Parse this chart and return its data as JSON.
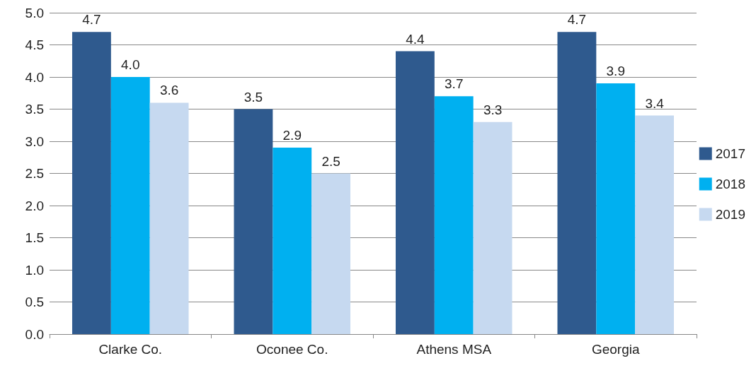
{
  "chart_data": {
    "type": "bar",
    "categories": [
      "Clarke Co.",
      "Oconee Co.",
      "Athens MSA",
      "Georgia"
    ],
    "series": [
      {
        "name": "2017",
        "color": "#2f5a8e",
        "values": [
          4.7,
          3.5,
          4.4,
          4.7
        ],
        "value_labels": [
          "4.7",
          "3.5",
          "4.4",
          "4.7"
        ]
      },
      {
        "name": "2018",
        "color": "#00b0f0",
        "values": [
          4.0,
          2.9,
          3.7,
          3.9
        ],
        "value_labels": [
          "4.0",
          "2.9",
          "3.7",
          "3.9"
        ]
      },
      {
        "name": "2019",
        "color": "#c6d9f0",
        "values": [
          3.6,
          2.5,
          3.3,
          3.4
        ],
        "value_labels": [
          "3.6",
          "2.5",
          "3.3",
          "3.4"
        ]
      }
    ],
    "ylim": [
      0,
      5
    ],
    "yticks": [
      {
        "value": 0,
        "label": "0.0"
      },
      {
        "value": 0.5,
        "label": "0.5"
      },
      {
        "value": 1,
        "label": "1.0"
      },
      {
        "value": 1.5,
        "label": "1.5"
      },
      {
        "value": 2,
        "label": "2.0"
      },
      {
        "value": 2.5,
        "label": "2.5"
      },
      {
        "value": 3,
        "label": "3.0"
      },
      {
        "value": 3.5,
        "label": "3.5"
      },
      {
        "value": 4,
        "label": "4.0"
      },
      {
        "value": 4.5,
        "label": "4.5"
      },
      {
        "value": 5,
        "label": "5.0"
      }
    ],
    "grid": "y",
    "legend": "right"
  }
}
